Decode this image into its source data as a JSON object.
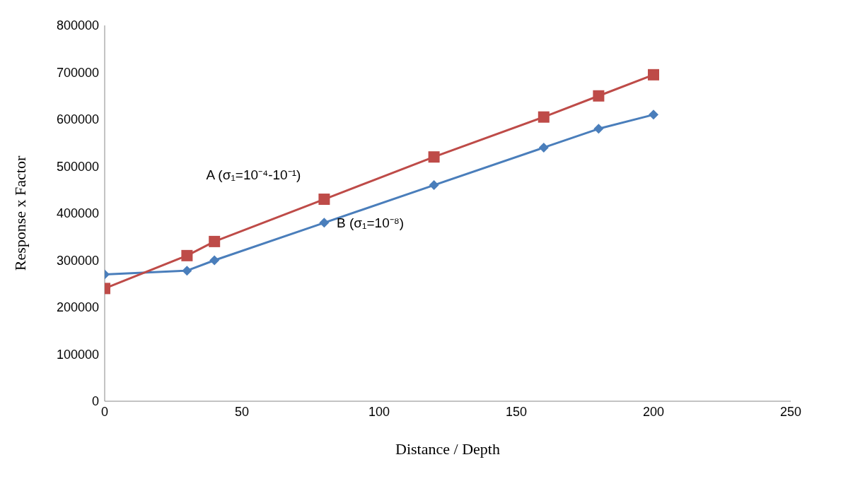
{
  "chart_data": {
    "type": "line",
    "xlabel": "Distance / Depth",
    "ylabel": "Response  x  Factor",
    "x": [
      0,
      30,
      40,
      80,
      120,
      160,
      180,
      200
    ],
    "series": [
      {
        "name": "B (σ₁=10⁻⁸)",
        "color": "#4a7ebb",
        "marker": "diamond",
        "values": [
          270000,
          278000,
          300000,
          380000,
          460000,
          540000,
          580000,
          610000
        ]
      },
      {
        "name": "A (σ₁=10⁻⁴-10⁻¹)",
        "color": "#be4b48",
        "marker": "square",
        "values": [
          240000,
          310000,
          340000,
          430000,
          520000,
          605000,
          650000,
          695000
        ]
      }
    ],
    "xlim": [
      0,
      250
    ],
    "xticks": [
      0,
      50,
      100,
      150,
      200,
      250
    ],
    "ylim": [
      0,
      800000
    ],
    "yticks": [
      0,
      100000,
      200000,
      300000,
      400000,
      500000,
      600000,
      700000,
      800000
    ],
    "grid": false,
    "legend": false,
    "line_style": "solid"
  }
}
